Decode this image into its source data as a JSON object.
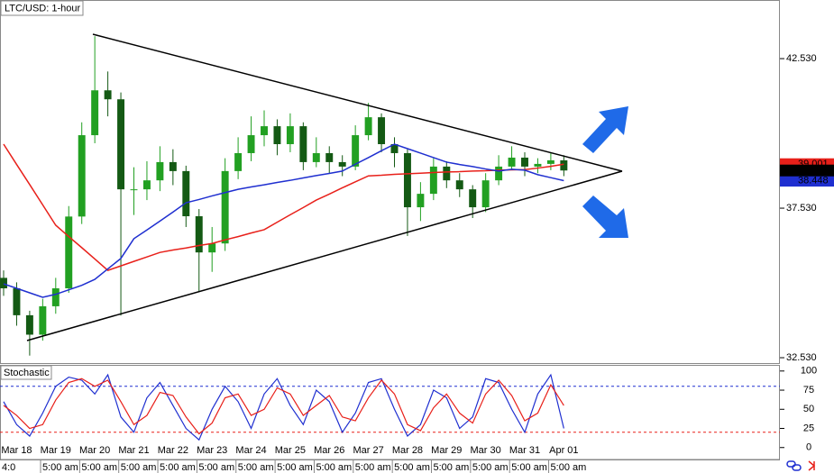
{
  "chart_data": [
    {
      "type": "candlestick",
      "title": "LTC/USD: 1-hour",
      "categories": [
        null,
        "Mar 18",
        null,
        null,
        "Mar 19",
        null,
        null,
        "Mar 20",
        null,
        null,
        "Mar 21",
        null,
        null,
        "Mar 22",
        null,
        null,
        "Mar 23",
        null,
        null,
        "Mar 24",
        null,
        null,
        "Mar 25",
        null,
        null,
        "Mar 26",
        null,
        null,
        "Mar 27",
        null,
        null,
        "Mar 28",
        null,
        null,
        "Mar 29",
        null,
        null,
        "Mar 30",
        null,
        null,
        "Mar 31",
        null,
        null,
        "Apr 01"
      ],
      "time_labels": [
        "4:0",
        "5:00 am",
        "5:00 am",
        "5:00 am",
        "5:00 am",
        "5:00 am",
        "5:00 am",
        "5:00 am",
        "5:00 am",
        "5:00 am",
        "5:00 am",
        "5:00 am",
        "5:00 am",
        "5:00 am",
        "5:00 am"
      ],
      "open": [
        35.2,
        34.85,
        33.95,
        33.3,
        34.25,
        34.85,
        37.25,
        39.97,
        41.47,
        41.17,
        38.16,
        38.16,
        38.46,
        39.07,
        38.77,
        37.26,
        36.05,
        36.35,
        38.77,
        39.37,
        39.97,
        40.27,
        39.67,
        40.27,
        39.07,
        39.37,
        39.07,
        38.92,
        39.97,
        40.57,
        39.67,
        39.37,
        37.56,
        38.01,
        38.92,
        38.46,
        38.16,
        37.56,
        38.46,
        38.92,
        39.22,
        38.92,
        39.01,
        39.13
      ],
      "high": [
        35.45,
        35.05,
        34.1,
        34.5,
        35.2,
        37.6,
        40.4,
        43.28,
        42.1,
        41.4,
        38.9,
        39.1,
        39.6,
        39.5,
        38.95,
        37.5,
        36.9,
        39.2,
        39.9,
        40.6,
        40.8,
        40.5,
        40.7,
        40.4,
        39.9,
        39.6,
        39.3,
        40.3,
        41.05,
        40.7,
        39.9,
        39.5,
        38.4,
        39.2,
        39.1,
        38.7,
        38.3,
        38.7,
        39.3,
        39.6,
        39.4,
        39.2,
        39.4,
        39.3
      ],
      "low": [
        34.6,
        33.6,
        32.6,
        33.1,
        34.0,
        34.7,
        37.0,
        39.7,
        40.6,
        33.94,
        37.3,
        37.8,
        38.1,
        38.3,
        36.9,
        34.73,
        35.4,
        36.1,
        38.5,
        39.1,
        39.6,
        39.3,
        39.4,
        38.8,
        38.9,
        38.7,
        38.6,
        38.8,
        39.8,
        39.4,
        38.9,
        36.6,
        37.1,
        37.8,
        38.2,
        37.9,
        37.2,
        37.4,
        38.3,
        38.8,
        38.6,
        38.7,
        38.8,
        38.6
      ],
      "close": [
        34.85,
        33.95,
        33.3,
        34.25,
        34.85,
        37.25,
        39.97,
        41.47,
        41.17,
        38.16,
        38.16,
        38.46,
        39.07,
        38.77,
        37.26,
        36.05,
        36.35,
        38.77,
        39.37,
        39.97,
        40.27,
        39.67,
        40.27,
        39.07,
        39.37,
        39.07,
        38.92,
        39.97,
        40.57,
        39.67,
        39.37,
        37.56,
        38.01,
        38.92,
        38.46,
        38.16,
        37.56,
        38.46,
        38.92,
        39.22,
        38.92,
        39.01,
        39.13,
        38.79
      ],
      "up_color": "#22a022",
      "down_color": "#145a14",
      "overlays": [
        {
          "color": "#e8201a",
          "values": [
            39.67,
            38.99,
            38.32,
            37.64,
            36.96,
            36.58,
            36.21,
            35.83,
            35.45,
            35.6,
            35.75,
            35.9,
            36.05,
            36.13,
            36.2,
            36.28,
            36.35,
            36.47,
            36.58,
            36.7,
            36.81,
            37.06,
            37.31,
            37.55,
            37.8,
            38.0,
            38.21,
            38.41,
            38.61,
            38.63,
            38.66,
            38.68,
            38.7,
            38.72,
            38.74,
            38.75,
            38.77,
            38.78,
            38.8,
            38.81,
            38.82,
            38.87,
            38.93,
            39.0
          ]
        },
        {
          "color": "#1f2fd0",
          "values": [
            35.0,
            34.85,
            34.7,
            34.55,
            34.65,
            34.8,
            34.95,
            35.15,
            35.5,
            35.85,
            36.51,
            36.8,
            37.1,
            37.4,
            37.71,
            37.82,
            37.94,
            38.05,
            38.16,
            38.24,
            38.31,
            38.39,
            38.46,
            38.54,
            38.62,
            38.69,
            38.77,
            39.0,
            39.22,
            39.45,
            39.67,
            39.52,
            39.37,
            39.22,
            39.07,
            38.99,
            38.92,
            38.84,
            38.77,
            38.83,
            38.8,
            38.65,
            38.55,
            38.45
          ]
        }
      ],
      "ylim": [
        32.29,
        44.49
      ],
      "yticks": [
        {
          "value": 32.53,
          "label": "32.530"
        },
        {
          "value": 37.53,
          "label": "37.530"
        },
        {
          "value": 42.53,
          "label": "42.530"
        }
      ],
      "price_tags": [
        {
          "value": 39.001,
          "label": "39.001",
          "color": "#e8201a"
        },
        {
          "value": 38.448,
          "label": "38.448",
          "color": "#1f2fd0"
        },
        {
          "value": 38.79,
          "label": "38.790",
          "color": "#000000"
        }
      ]
    },
    {
      "type": "line",
      "title": "Stochastic",
      "series": [
        {
          "color": "#1f2fd0",
          "values": [
            60,
            30,
            15,
            45,
            80,
            92,
            88,
            70,
            95,
            40,
            20,
            65,
            85,
            55,
            25,
            10,
            50,
            80,
            60,
            25,
            70,
            90,
            55,
            30,
            75,
            60,
            20,
            45,
            85,
            90,
            50,
            15,
            30,
            75,
            65,
            25,
            40,
            90,
            85,
            50,
            20,
            70,
            95,
            25
          ]
        },
        {
          "color": "#e8201a",
          "values": [
            55,
            42,
            25,
            30,
            62,
            85,
            90,
            80,
            88,
            60,
            30,
            42,
            72,
            68,
            40,
            18,
            32,
            65,
            70,
            42,
            50,
            78,
            70,
            42,
            55,
            68,
            40,
            35,
            65,
            88,
            70,
            30,
            22,
            52,
            70,
            45,
            32,
            70,
            88,
            68,
            35,
            45,
            82,
            55
          ]
        }
      ],
      "levels": [
        {
          "value": 80,
          "color": "#1f2fd0"
        },
        {
          "value": 20,
          "color": "#e8201a"
        }
      ],
      "ylim": [
        -5,
        108
      ],
      "yticks": [
        0,
        25,
        50,
        75,
        100
      ]
    }
  ]
}
